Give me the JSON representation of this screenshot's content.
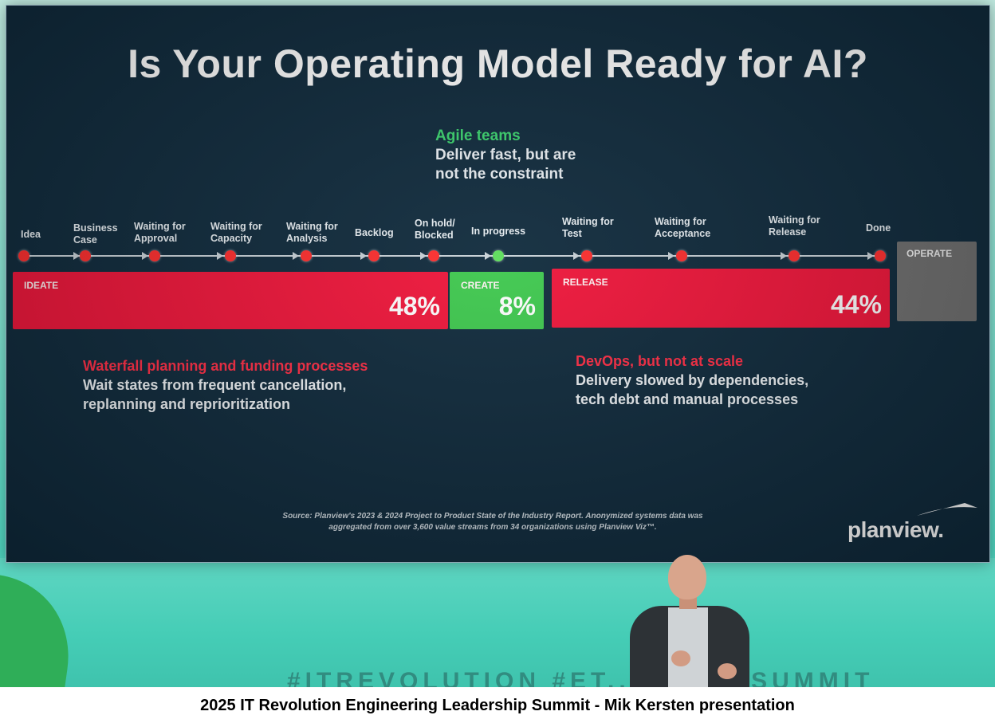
{
  "slide": {
    "title": "Is Your Operating Model Ready for AI?",
    "agile": {
      "heading": "Agile teams",
      "lines": [
        "Deliver fast, but are",
        "not the constraint"
      ]
    },
    "stages": [
      {
        "line1": "Idea",
        "line2": ""
      },
      {
        "line1": "Business",
        "line2": "Case"
      },
      {
        "line1": "Waiting for",
        "line2": "Approval"
      },
      {
        "line1": "Waiting for",
        "line2": "Capacity"
      },
      {
        "line1": "Waiting for",
        "line2": "Analysis"
      },
      {
        "line1": "Backlog",
        "line2": ""
      },
      {
        "line1": "On hold/",
        "line2": "Blocked"
      },
      {
        "line1": "In progress",
        "line2": ""
      },
      {
        "line1": "Waiting for",
        "line2": "Test"
      },
      {
        "line1": "Waiting for",
        "line2": "Acceptance"
      },
      {
        "line1": "Waiting for",
        "line2": "Release"
      },
      {
        "line1": "Done",
        "line2": ""
      }
    ],
    "bars": {
      "ideate": {
        "label": "IDEATE",
        "percent": "48%"
      },
      "create": {
        "label": "CREATE",
        "percent": "8%"
      },
      "release": {
        "label": "RELEASE",
        "percent": "44%"
      },
      "operate": {
        "label": "OPERATE"
      }
    },
    "note_left": {
      "heading": "Waterfall planning and funding processes",
      "lines": [
        "Wait states from frequent cancellation,",
        "replanning and reprioritization"
      ]
    },
    "note_right": {
      "heading": "DevOps, but not at scale",
      "lines": [
        "Delivery slowed by dependencies,",
        "tech debt and manual processes"
      ]
    },
    "source": [
      "Source: Planview's 2023 & 2024 Project to Product State of the Industry Report. Anonymized systems data was",
      "aggregated from over 3,600 value streams from 34 organizations using Planview Viz™."
    ],
    "logo": "planview."
  },
  "stage_lettering": "#ITREVOLUTION   #ET...   ...REYSUMMIT",
  "caption": "2025 IT Revolution Engineering Leadership Summit - Mik Kersten presentation",
  "colors": {
    "screen_bg": "#0f2a3c",
    "red": "#f0153a",
    "green": "#3ec94e",
    "gray": "#6f6f6f",
    "agile_green": "#3bd36e",
    "heading_red": "#ff2d45"
  }
}
